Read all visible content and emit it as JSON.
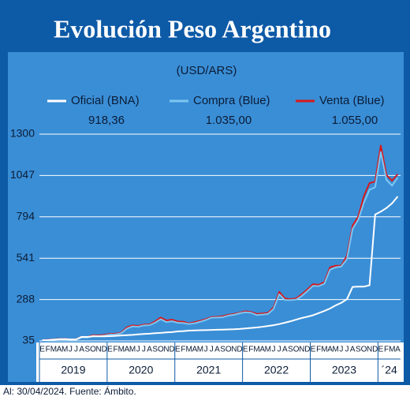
{
  "chart_data": {
    "type": "line",
    "title": "Evolución Peso Argentino",
    "subtitle": "(USD/ARS)",
    "footer": "Al: 30/04/2024. Fuente: Ámbito.",
    "categories": [
      "E",
      "F",
      "M",
      "A",
      "M",
      "J",
      "J",
      "A",
      "S",
      "O",
      "N",
      "D",
      "E",
      "F",
      "M",
      "A",
      "M",
      "J",
      "J",
      "A",
      "S",
      "O",
      "N",
      "D",
      "E",
      "F",
      "M",
      "A",
      "M",
      "J",
      "J",
      "A",
      "S",
      "O",
      "N",
      "D",
      "E",
      "F",
      "M",
      "A",
      "M",
      "J",
      "J",
      "A",
      "S",
      "O",
      "N",
      "D",
      "E",
      "F",
      "M",
      "A",
      "M",
      "J",
      "J",
      "A",
      "S",
      "O",
      "N",
      "D",
      "E",
      "F",
      "M",
      "A"
    ],
    "year_labels": [
      "2019",
      "2020",
      "2021",
      "2022",
      "2023",
      "´24"
    ],
    "ylim": [
      35,
      1300
    ],
    "yticks": [
      35,
      288,
      541,
      794,
      1047,
      1300
    ],
    "grid": true,
    "series": [
      {
        "name": "Oficial (BNA)",
        "color": "#ffffff",
        "latest": "918,36",
        "values": [
          39,
          40,
          43,
          45,
          46,
          44,
          44,
          60,
          59,
          63,
          63,
          63,
          64,
          66,
          68,
          70,
          72,
          75,
          77,
          79,
          82,
          84,
          87,
          89,
          93,
          95,
          98,
          99,
          100,
          101,
          102,
          103,
          104,
          105,
          106,
          108,
          111,
          114,
          117,
          121,
          126,
          131,
          138,
          146,
          155,
          165,
          175,
          183,
          192,
          205,
          218,
          233,
          252,
          268,
          290,
          365,
          367,
          367,
          375,
          808,
          826,
          848,
          877,
          918.36
        ]
      },
      {
        "name": "Compra (Blue)",
        "color": "#7cc6f2",
        "latest": "1.035,00",
        "values": [
          37,
          39,
          42,
          45,
          45,
          42,
          43,
          56,
          55,
          66,
          64,
          67,
          74,
          75,
          82,
          110,
          124,
          121,
          130,
          131,
          146,
          168,
          150,
          155,
          146,
          144,
          138,
          143,
          152,
          163,
          177,
          178,
          180,
          190,
          195,
          204,
          210,
          207,
          193,
          196,
          200,
          230,
          320,
          285,
          285,
          288,
          310,
          340,
          372,
          370,
          385,
          470,
          485,
          490,
          535,
          720,
          775,
          880,
          960,
          975,
          1190,
          1020,
          985,
          1035
        ]
      },
      {
        "name": "Venta (Blue)",
        "color": "#d7191c",
        "latest": "1.055,00",
        "values": [
          39,
          41,
          44,
          47,
          47,
          44,
          45,
          60,
          58,
          70,
          68,
          72,
          78,
          79,
          86,
          118,
          130,
          126,
          135,
          136,
          154,
          178,
          160,
          165,
          154,
          152,
          142,
          150,
          158,
          168,
          181,
          182,
          186,
          195,
          200,
          208,
          216,
          212,
          200,
          203,
          206,
          240,
          335,
          295,
          290,
          295,
          320,
          350,
          382,
          378,
          395,
          485,
          495,
          495,
          555,
          740,
          795,
          920,
          1000,
          1010,
          1230,
          1050,
          1015,
          1055
        ]
      }
    ]
  }
}
